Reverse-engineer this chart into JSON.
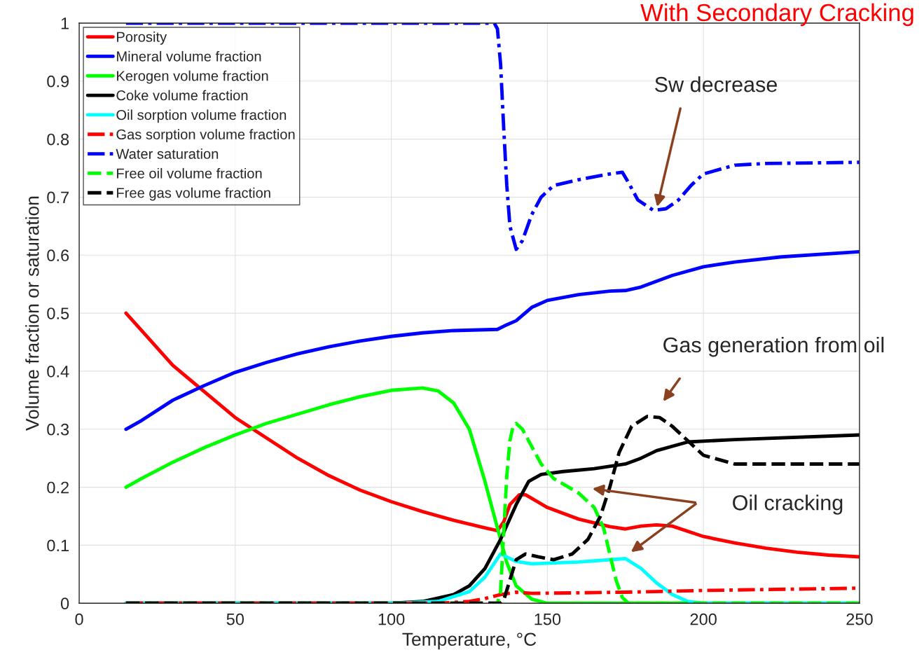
{
  "chart_data": {
    "type": "line",
    "title": "With Secondary Cracking",
    "xlabel": "Temperature, °C",
    "ylabel": "Volume fraction or saturation",
    "xlim": [
      0,
      250
    ],
    "xticks": [
      0,
      50,
      100,
      150,
      200,
      250
    ],
    "ylim": [
      0,
      1
    ],
    "yticks": [
      0,
      0.1,
      0.2,
      0.3,
      0.4,
      0.5,
      0.6,
      0.7,
      0.8,
      0.9,
      1
    ],
    "grid": true,
    "legend": "top left",
    "marker": "none",
    "series": [
      {
        "name": "Porosity",
        "color": "#ff0000",
        "line_style": "solid",
        "x": [
          15,
          20,
          30,
          40,
          50,
          60,
          70,
          80,
          90,
          100,
          110,
          120,
          130,
          134,
          136,
          138,
          141,
          143,
          150,
          160,
          170,
          175,
          180,
          185,
          190,
          200,
          210,
          220,
          230,
          240,
          250
        ],
        "values": [
          0.5,
          0.47,
          0.41,
          0.365,
          0.32,
          0.285,
          0.25,
          0.22,
          0.195,
          0.175,
          0.158,
          0.143,
          0.13,
          0.125,
          0.14,
          0.17,
          0.187,
          0.187,
          0.165,
          0.145,
          0.132,
          0.128,
          0.133,
          0.135,
          0.133,
          0.115,
          0.104,
          0.095,
          0.088,
          0.083,
          0.08
        ]
      },
      {
        "name": "Mineral volume fraction",
        "color": "#0000ff",
        "line_style": "solid",
        "x": [
          15,
          20,
          30,
          40,
          50,
          60,
          70,
          80,
          90,
          100,
          110,
          120,
          134,
          137,
          140,
          145,
          150,
          160,
          170,
          175,
          180,
          190,
          200,
          210,
          225,
          250
        ],
        "values": [
          0.3,
          0.315,
          0.35,
          0.375,
          0.398,
          0.415,
          0.43,
          0.442,
          0.452,
          0.46,
          0.466,
          0.47,
          0.472,
          0.48,
          0.487,
          0.51,
          0.522,
          0.532,
          0.538,
          0.539,
          0.545,
          0.565,
          0.58,
          0.588,
          0.597,
          0.606
        ]
      },
      {
        "name": "Kerogen volume fraction",
        "color": "#00ff00",
        "line_style": "solid",
        "x": [
          15,
          20,
          30,
          40,
          50,
          60,
          70,
          80,
          90,
          100,
          110,
          115,
          120,
          125,
          130,
          134,
          137,
          140,
          145,
          150,
          250
        ],
        "values": [
          0.2,
          0.215,
          0.243,
          0.268,
          0.29,
          0.31,
          0.326,
          0.342,
          0.356,
          0.367,
          0.371,
          0.366,
          0.345,
          0.3,
          0.21,
          0.13,
          0.07,
          0.03,
          0.007,
          0,
          0
        ]
      },
      {
        "name": "Coke volume fraction",
        "color": "#000000",
        "line_style": "solid",
        "x": [
          15,
          100,
          110,
          120,
          125,
          130,
          135,
          140,
          144,
          148,
          155,
          165,
          175,
          180,
          185,
          195,
          210,
          250
        ],
        "values": [
          0,
          0,
          0.003,
          0.015,
          0.03,
          0.06,
          0.11,
          0.17,
          0.21,
          0.222,
          0.227,
          0.232,
          0.24,
          0.25,
          0.263,
          0.278,
          0.282,
          0.29
        ]
      },
      {
        "name": "Oil sorption volume fraction",
        "color": "#00ffff",
        "line_style": "solid",
        "x": [
          15,
          100,
          115,
          125,
          130,
          135,
          140,
          145,
          160,
          175,
          180,
          185,
          190,
          195,
          200,
          250
        ],
        "values": [
          0,
          0,
          0.003,
          0.02,
          0.045,
          0.085,
          0.072,
          0.068,
          0.071,
          0.077,
          0.06,
          0.035,
          0.015,
          0.003,
          0,
          0
        ]
      },
      {
        "name": "Gas sorption volume fraction",
        "color": "#ff0000",
        "line_style": "dashdot",
        "x": [
          15,
          115,
          125,
          130,
          135,
          140,
          145,
          175,
          200,
          250
        ],
        "values": [
          0,
          0,
          0.003,
          0.008,
          0.015,
          0.019,
          0.017,
          0.019,
          0.022,
          0.026
        ]
      },
      {
        "name": "Water saturation",
        "color": "#0000ff",
        "line_style": "dashdot",
        "x": [
          15,
          133,
          134,
          135,
          136,
          137,
          138,
          140,
          142,
          145,
          148,
          152,
          160,
          170,
          174,
          176,
          179,
          184,
          188,
          192,
          196,
          200,
          210,
          220,
          250
        ],
        "values": [
          1,
          1,
          0.99,
          0.93,
          0.82,
          0.72,
          0.65,
          0.61,
          0.625,
          0.67,
          0.7,
          0.72,
          0.73,
          0.74,
          0.743,
          0.725,
          0.695,
          0.677,
          0.68,
          0.695,
          0.72,
          0.74,
          0.755,
          0.758,
          0.76
        ]
      },
      {
        "name": "Free oil volume fraction",
        "color": "#00ff00",
        "line_style": "dashed",
        "x": [
          15,
          134,
          135,
          136,
          137,
          138,
          139,
          140,
          142,
          145,
          148,
          152,
          160,
          165,
          168,
          170,
          172,
          174,
          176,
          250
        ],
        "values": [
          0,
          0,
          0.02,
          0.12,
          0.22,
          0.28,
          0.305,
          0.31,
          0.3,
          0.27,
          0.24,
          0.215,
          0.19,
          0.165,
          0.13,
          0.085,
          0.04,
          0.01,
          0,
          0
        ]
      },
      {
        "name": "Free gas volume fraction",
        "color": "#000000",
        "line_style": "dashed",
        "x": [
          15,
          135,
          136,
          138,
          140,
          143,
          147,
          152,
          158,
          163,
          167,
          170,
          173,
          177,
          182,
          186,
          190,
          195,
          200,
          210,
          250
        ],
        "values": [
          0,
          0,
          0.005,
          0.04,
          0.075,
          0.085,
          0.08,
          0.075,
          0.085,
          0.11,
          0.15,
          0.2,
          0.26,
          0.305,
          0.322,
          0.32,
          0.305,
          0.28,
          0.255,
          0.24,
          0.24
        ]
      }
    ],
    "annotations": [
      "Sw decrease",
      "Gas generation from oil",
      "Oil cracking"
    ]
  }
}
